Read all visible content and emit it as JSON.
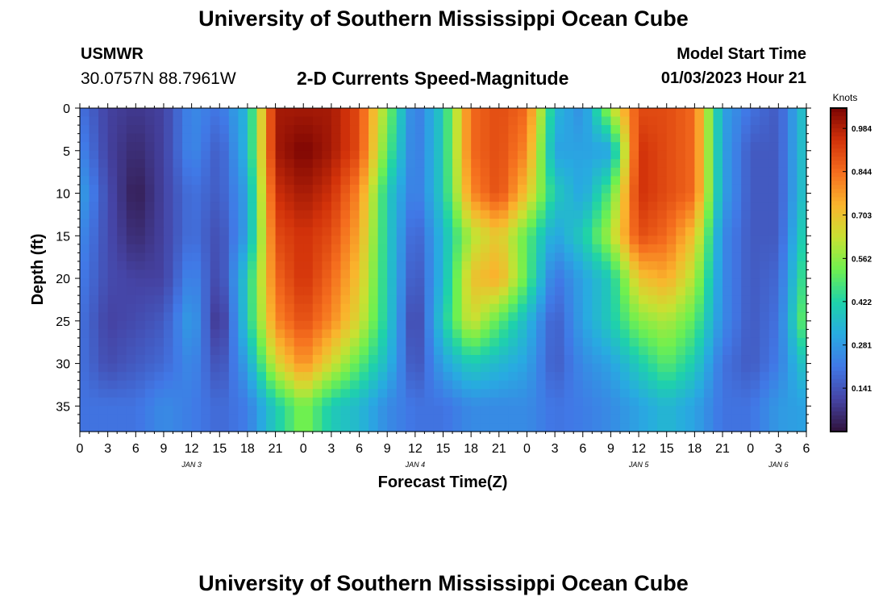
{
  "header": {
    "title": "University of Southern Mississippi Ocean Cube",
    "station": "USMWR",
    "coordinates": "30.0757N  88.7961W",
    "plot_name": "2-D Currents Speed-Magnitude",
    "model_start_label": "Model Start Time",
    "model_start_value": "01/03/2023 Hour 21"
  },
  "footer": {
    "title": "University of Southern Mississippi Ocean Cube"
  },
  "chart_data": {
    "type": "heatmap",
    "title": "2-D Currents Speed-Magnitude",
    "xlabel": "Forecast Time(Z)",
    "ylabel": "Depth (ft)",
    "x_tick_labels": [
      "0",
      "3",
      "6",
      "9",
      "12",
      "15",
      "18",
      "21",
      "0",
      "3",
      "6",
      "9",
      "12",
      "15",
      "18",
      "21",
      "0",
      "3",
      "6",
      "9",
      "12",
      "15",
      "18",
      "21",
      "0",
      "3",
      "6"
    ],
    "date_labels": [
      "JAN 3",
      "JAN 4",
      "JAN 5",
      "JAN 6"
    ],
    "x_range_hours": [
      0,
      78
    ],
    "y_tick_labels": [
      "0",
      "5",
      "10",
      "15",
      "20",
      "25",
      "30",
      "35"
    ],
    "ylim": [
      0,
      38
    ],
    "colorbar": {
      "label": "Knots",
      "ticks": [
        "0.984",
        "0.844",
        "0.703",
        "0.562",
        "0.422",
        "0.281",
        "0.141"
      ],
      "range": [
        0,
        1.05
      ]
    },
    "speed_knots": {
      "depth_ft": [
        0,
        5,
        10,
        15,
        20,
        25,
        30,
        35
      ],
      "hour": [
        0,
        3,
        6,
        9,
        12,
        15,
        18,
        21,
        24,
        27,
        30,
        33,
        36,
        39,
        42,
        45,
        48,
        51,
        54,
        57,
        60,
        63,
        66,
        69,
        72,
        75,
        78
      ],
      "values": [
        [
          0.2,
          0.1,
          0.08,
          0.1,
          0.25,
          0.2,
          0.35,
          1.0,
          1.0,
          1.0,
          0.9,
          0.55,
          0.2,
          0.4,
          0.85,
          0.9,
          0.85,
          0.35,
          0.25,
          0.6,
          0.9,
          0.9,
          0.85,
          0.3,
          0.2,
          0.15,
          0.4
        ],
        [
          0.24,
          0.1,
          0.05,
          0.1,
          0.25,
          0.15,
          0.35,
          1.0,
          1.05,
          1.0,
          0.9,
          0.5,
          0.2,
          0.4,
          0.85,
          0.9,
          0.8,
          0.3,
          0.3,
          0.3,
          0.95,
          0.9,
          0.85,
          0.3,
          0.15,
          0.15,
          0.4
        ],
        [
          0.3,
          0.12,
          0.02,
          0.1,
          0.2,
          0.15,
          0.3,
          0.95,
          1.0,
          0.95,
          0.8,
          0.4,
          0.2,
          0.4,
          0.8,
          0.9,
          0.7,
          0.4,
          0.3,
          0.5,
          0.95,
          0.9,
          0.85,
          0.3,
          0.15,
          0.15,
          0.4
        ],
        [
          0.25,
          0.12,
          0.05,
          0.1,
          0.2,
          0.12,
          0.3,
          0.9,
          0.95,
          0.9,
          0.75,
          0.4,
          0.15,
          0.35,
          0.6,
          0.7,
          0.5,
          0.3,
          0.4,
          0.6,
          0.9,
          0.85,
          0.7,
          0.25,
          0.15,
          0.15,
          0.45
        ],
        [
          0.22,
          0.12,
          0.1,
          0.1,
          0.25,
          0.1,
          0.4,
          0.85,
          0.95,
          0.85,
          0.7,
          0.4,
          0.12,
          0.35,
          0.7,
          0.75,
          0.5,
          0.2,
          0.3,
          0.4,
          0.7,
          0.75,
          0.6,
          0.25,
          0.15,
          0.18,
          0.5
        ],
        [
          0.2,
          0.1,
          0.12,
          0.15,
          0.3,
          0.05,
          0.4,
          0.8,
          0.9,
          0.8,
          0.65,
          0.4,
          0.08,
          0.4,
          0.65,
          0.5,
          0.35,
          0.15,
          0.3,
          0.4,
          0.55,
          0.6,
          0.5,
          0.25,
          0.15,
          0.2,
          0.55
        ],
        [
          0.2,
          0.12,
          0.15,
          0.18,
          0.25,
          0.12,
          0.3,
          0.65,
          0.8,
          0.65,
          0.5,
          0.35,
          0.12,
          0.3,
          0.4,
          0.35,
          0.3,
          0.15,
          0.25,
          0.3,
          0.4,
          0.5,
          0.4,
          0.2,
          0.15,
          0.22,
          0.4
        ],
        [
          0.2,
          0.2,
          0.2,
          0.25,
          0.22,
          0.18,
          0.22,
          0.4,
          0.55,
          0.4,
          0.35,
          0.25,
          0.2,
          0.2,
          0.25,
          0.25,
          0.25,
          0.2,
          0.22,
          0.25,
          0.3,
          0.35,
          0.3,
          0.2,
          0.2,
          0.28,
          0.3
        ]
      ]
    }
  }
}
